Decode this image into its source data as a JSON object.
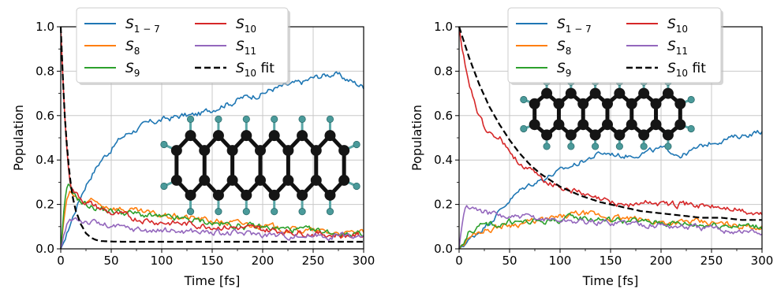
{
  "chart_data": [
    {
      "type": "line",
      "xlabel": "Time [fs]",
      "ylabel": "Population",
      "xlim": [
        0,
        300
      ],
      "ylim": [
        0,
        1.0
      ],
      "x_ticks": [
        "0",
        "50",
        "100",
        "150",
        "200",
        "250",
        "300"
      ],
      "y_ticks": [
        "0.0",
        "0.2",
        "0.4",
        "0.6",
        "0.8",
        "1.0"
      ],
      "grid": true,
      "legend": "top-center",
      "series": [
        {
          "name": "S",
          "sub": "1 − 7",
          "color": "#1f77b4",
          "dashed": false,
          "noise": 0.012,
          "x": [
            0,
            5,
            10,
            15,
            20,
            25,
            30,
            40,
            50,
            60,
            70,
            80,
            90,
            100,
            110,
            120,
            130,
            140,
            150,
            160,
            170,
            180,
            190,
            200,
            210,
            220,
            230,
            240,
            250,
            260,
            270,
            280,
            290,
            300
          ],
          "y": [
            0.0,
            0.05,
            0.12,
            0.18,
            0.24,
            0.29,
            0.33,
            0.4,
            0.45,
            0.5,
            0.53,
            0.55,
            0.57,
            0.58,
            0.59,
            0.6,
            0.6,
            0.61,
            0.63,
            0.65,
            0.66,
            0.68,
            0.69,
            0.7,
            0.72,
            0.73,
            0.74,
            0.75,
            0.77,
            0.78,
            0.79,
            0.77,
            0.75,
            0.73
          ]
        },
        {
          "name": "S",
          "sub": "8",
          "color": "#ff7f0e",
          "dashed": false,
          "noise": 0.012,
          "x": [
            0,
            3,
            5,
            8,
            10,
            15,
            20,
            30,
            40,
            50,
            70,
            100,
            130,
            160,
            190,
            220,
            250,
            280,
            300
          ],
          "y": [
            0.0,
            0.12,
            0.2,
            0.24,
            0.25,
            0.23,
            0.21,
            0.21,
            0.2,
            0.19,
            0.17,
            0.15,
            0.14,
            0.12,
            0.11,
            0.09,
            0.08,
            0.07,
            0.07
          ]
        },
        {
          "name": "S",
          "sub": "9",
          "color": "#2ca02c",
          "dashed": false,
          "noise": 0.012,
          "x": [
            0,
            3,
            5,
            8,
            10,
            15,
            20,
            30,
            40,
            50,
            70,
            100,
            130,
            160,
            190,
            220,
            250,
            280,
            300
          ],
          "y": [
            0.0,
            0.15,
            0.25,
            0.28,
            0.27,
            0.24,
            0.21,
            0.19,
            0.18,
            0.17,
            0.16,
            0.14,
            0.13,
            0.11,
            0.1,
            0.09,
            0.08,
            0.07,
            0.07
          ]
        },
        {
          "name": "S",
          "sub": "10",
          "color": "#d62728",
          "dashed": false,
          "noise": 0.012,
          "x": [
            0,
            2,
            4,
            6,
            8,
            10,
            12,
            15,
            20,
            25,
            30,
            40,
            50,
            70,
            100,
            130,
            160,
            190,
            220,
            250,
            280,
            300
          ],
          "y": [
            1.0,
            0.78,
            0.6,
            0.45,
            0.35,
            0.29,
            0.27,
            0.25,
            0.23,
            0.21,
            0.2,
            0.18,
            0.16,
            0.14,
            0.12,
            0.11,
            0.1,
            0.09,
            0.08,
            0.07,
            0.06,
            0.06
          ]
        },
        {
          "name": "S",
          "sub": "11",
          "color": "#9467bd",
          "dashed": false,
          "noise": 0.012,
          "x": [
            0,
            3,
            5,
            8,
            10,
            15,
            20,
            30,
            40,
            50,
            70,
            100,
            130,
            160,
            190,
            220,
            250,
            280,
            300
          ],
          "y": [
            0.0,
            0.05,
            0.09,
            0.12,
            0.13,
            0.14,
            0.13,
            0.12,
            0.11,
            0.1,
            0.09,
            0.08,
            0.08,
            0.07,
            0.07,
            0.06,
            0.06,
            0.06,
            0.05
          ]
        },
        {
          "name": "S",
          "sub": "10",
          "suffix": " fit",
          "color": "#000000",
          "dashed": true,
          "noise": 0,
          "x": [
            0,
            2,
            4,
            6,
            8,
            10,
            12,
            15,
            20,
            25,
            30,
            35,
            40,
            50,
            60,
            80,
            100,
            150,
            200,
            250,
            300
          ],
          "y": [
            1.0,
            0.78,
            0.6,
            0.47,
            0.37,
            0.29,
            0.23,
            0.17,
            0.11,
            0.07,
            0.05,
            0.04,
            0.035,
            0.033,
            0.032,
            0.032,
            0.032,
            0.032,
            0.032,
            0.032,
            0.032
          ]
        }
      ]
    },
    {
      "type": "line",
      "xlabel": "Time [fs]",
      "ylabel": "Population",
      "xlim": [
        0,
        300
      ],
      "ylim": [
        0,
        1.0
      ],
      "x_ticks": [
        "0",
        "50",
        "100",
        "150",
        "200",
        "250",
        "300"
      ],
      "y_ticks": [
        "0.0",
        "0.2",
        "0.4",
        "0.6",
        "0.8",
        "1.0"
      ],
      "grid": true,
      "legend": "top-center",
      "series": [
        {
          "name": "S",
          "sub": "1 − 7",
          "color": "#1f77b4",
          "dashed": false,
          "noise": 0.01,
          "x": [
            0,
            10,
            20,
            30,
            40,
            50,
            60,
            70,
            80,
            90,
            100,
            110,
            120,
            130,
            140,
            150,
            160,
            170,
            180,
            190,
            200,
            210,
            220,
            230,
            240,
            250,
            260,
            270,
            280,
            290,
            300
          ],
          "y": [
            0.0,
            0.04,
            0.08,
            0.12,
            0.17,
            0.22,
            0.26,
            0.29,
            0.31,
            0.33,
            0.35,
            0.37,
            0.39,
            0.41,
            0.43,
            0.43,
            0.42,
            0.42,
            0.43,
            0.44,
            0.45,
            0.44,
            0.42,
            0.44,
            0.46,
            0.48,
            0.49,
            0.5,
            0.51,
            0.52,
            0.53
          ]
        },
        {
          "name": "S",
          "sub": "8",
          "color": "#ff7f0e",
          "dashed": false,
          "noise": 0.012,
          "x": [
            0,
            10,
            20,
            30,
            40,
            50,
            70,
            100,
            120,
            150,
            180,
            200,
            230,
            260,
            300
          ],
          "y": [
            0.0,
            0.05,
            0.08,
            0.09,
            0.1,
            0.11,
            0.12,
            0.14,
            0.16,
            0.14,
            0.13,
            0.12,
            0.12,
            0.11,
            0.1
          ]
        },
        {
          "name": "S",
          "sub": "9",
          "color": "#2ca02c",
          "dashed": false,
          "noise": 0.012,
          "x": [
            0,
            10,
            20,
            30,
            40,
            50,
            70,
            100,
            120,
            150,
            180,
            200,
            230,
            260,
            300
          ],
          "y": [
            0.0,
            0.08,
            0.1,
            0.11,
            0.11,
            0.12,
            0.12,
            0.13,
            0.14,
            0.13,
            0.12,
            0.12,
            0.11,
            0.11,
            0.1
          ]
        },
        {
          "name": "S",
          "sub": "10",
          "color": "#d62728",
          "dashed": false,
          "noise": 0.012,
          "x": [
            0,
            3,
            6,
            10,
            15,
            20,
            25,
            30,
            35,
            40,
            50,
            60,
            70,
            80,
            90,
            100,
            110,
            120,
            130,
            140,
            150,
            170,
            190,
            210,
            230,
            250,
            270,
            290,
            300
          ],
          "y": [
            1.0,
            0.9,
            0.82,
            0.74,
            0.66,
            0.6,
            0.55,
            0.52,
            0.51,
            0.5,
            0.44,
            0.39,
            0.35,
            0.32,
            0.3,
            0.28,
            0.27,
            0.25,
            0.23,
            0.22,
            0.21,
            0.2,
            0.21,
            0.2,
            0.2,
            0.19,
            0.18,
            0.16,
            0.15
          ]
        },
        {
          "name": "S",
          "sub": "11",
          "color": "#9467bd",
          "dashed": false,
          "noise": 0.012,
          "x": [
            0,
            3,
            6,
            10,
            15,
            20,
            30,
            40,
            50,
            70,
            100,
            130,
            160,
            190,
            220,
            250,
            280,
            300
          ],
          "y": [
            0.0,
            0.12,
            0.18,
            0.19,
            0.18,
            0.17,
            0.16,
            0.15,
            0.14,
            0.14,
            0.13,
            0.12,
            0.12,
            0.11,
            0.1,
            0.09,
            0.08,
            0.07
          ]
        },
        {
          "name": "S",
          "sub": "10",
          "suffix": " fit",
          "color": "#000000",
          "dashed": true,
          "noise": 0,
          "x": [
            0,
            5,
            10,
            15,
            20,
            25,
            30,
            40,
            50,
            60,
            70,
            80,
            90,
            100,
            120,
            140,
            160,
            180,
            200,
            220,
            240,
            260,
            280,
            300
          ],
          "y": [
            1.0,
            0.93,
            0.86,
            0.8,
            0.74,
            0.69,
            0.64,
            0.56,
            0.49,
            0.43,
            0.38,
            0.34,
            0.31,
            0.28,
            0.24,
            0.21,
            0.19,
            0.17,
            0.16,
            0.15,
            0.14,
            0.14,
            0.13,
            0.13
          ]
        }
      ]
    }
  ]
}
